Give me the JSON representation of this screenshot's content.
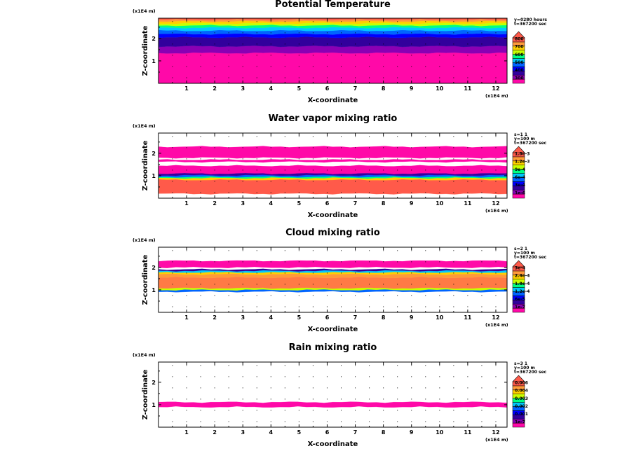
{
  "chart_data": [
    {
      "type": "heatmap",
      "title": "Potential Temperature",
      "xlabel": "X-coordinate",
      "ylabel": "Z-coordinate",
      "x_scale_note": "(x1E4 m)",
      "z_scale_note": "(x1E4 m)",
      "xlim": [
        0,
        12.4
      ],
      "ylim": [
        0,
        2.9
      ],
      "x_ticks": [
        "1",
        "2",
        "3",
        "4",
        "5",
        "6",
        "7",
        "8",
        "9",
        "10",
        "11",
        "12"
      ],
      "y_ticks": [
        "1",
        "2"
      ],
      "info_lines": [
        "y=0280 hours",
        "t=367200 sec"
      ],
      "colorbar_labels": [
        "800",
        "700",
        "600",
        "500",
        "400",
        "300"
      ],
      "bands": [
        {
          "z0": 0.0,
          "z1": 1.35,
          "color": "#ff09a8"
        },
        {
          "z0": 1.35,
          "z1": 1.65,
          "color": "#8a00b4"
        },
        {
          "z0": 1.65,
          "z1": 2.05,
          "color": "#32009c"
        },
        {
          "z0": 2.05,
          "z1": 2.2,
          "color": "#0000ff"
        },
        {
          "z0": 2.2,
          "z1": 2.35,
          "color": "#0064ff"
        },
        {
          "z0": 2.35,
          "z1": 2.48,
          "color": "#00c8ff"
        },
        {
          "z0": 2.48,
          "z1": 2.58,
          "color": "#00ff80"
        },
        {
          "z0": 2.58,
          "z1": 2.67,
          "color": "#c8ff00"
        },
        {
          "z0": 2.67,
          "z1": 2.76,
          "color": "#ffd000"
        },
        {
          "z0": 2.76,
          "z1": 2.83,
          "color": "#ff9a3a"
        },
        {
          "z0": 2.83,
          "z1": 2.9,
          "color": "#ff5a4a"
        }
      ]
    },
    {
      "type": "heatmap",
      "title": "Water vapor mixing ratio",
      "xlabel": "X-coordinate",
      "ylabel": "Z-coordinate",
      "x_scale_note": "(x1E4 m)",
      "z_scale_note": "(x1E4 m)",
      "xlim": [
        0,
        12.4
      ],
      "ylim": [
        0,
        2.9
      ],
      "x_ticks": [
        "1",
        "2",
        "3",
        "4",
        "5",
        "6",
        "7",
        "8",
        "9",
        "10",
        "11",
        "12"
      ],
      "y_ticks": [
        "1",
        "2"
      ],
      "info_lines": [
        "s=1 1",
        "y=100 m",
        "t=367200 sec"
      ],
      "colorbar_labels": [
        "1.8e-3",
        "1.2e-3",
        "9e-4",
        "6e-4",
        "3e-4",
        "1e-6"
      ],
      "bands": [
        {
          "z0": 0.0,
          "z1": 0.2,
          "color": "#ffffff"
        },
        {
          "z0": 0.2,
          "z1": 0.82,
          "color": "#ff5a4a"
        },
        {
          "z0": 0.82,
          "z1": 0.9,
          "color": "#ffd000"
        },
        {
          "z0": 0.9,
          "z1": 0.95,
          "color": "#00ff80"
        },
        {
          "z0": 0.95,
          "z1": 1.02,
          "color": "#0064ff"
        },
        {
          "z0": 1.02,
          "z1": 1.1,
          "color": "#32009c"
        },
        {
          "z0": 1.1,
          "z1": 1.45,
          "color": "#ff09a8"
        },
        {
          "z0": 1.45,
          "z1": 1.62,
          "color": "#ffffff"
        },
        {
          "z0": 1.62,
          "z1": 1.72,
          "color": "#ff09a8"
        },
        {
          "z0": 1.72,
          "z1": 1.8,
          "color": "#ffffff"
        },
        {
          "z0": 1.8,
          "z1": 2.3,
          "color": "#ff09a8"
        },
        {
          "z0": 2.3,
          "z1": 2.9,
          "color": "#ffffff"
        }
      ]
    },
    {
      "type": "heatmap",
      "title": "Cloud mixing ratio",
      "xlabel": "X-coordinate",
      "ylabel": "Z-coordinate",
      "x_scale_note": "(x1E4 m)",
      "z_scale_note": "(x1E4 m)",
      "xlim": [
        0,
        12.4
      ],
      "ylim": [
        0,
        2.9
      ],
      "x_ticks": [
        "1",
        "2",
        "3",
        "4",
        "5",
        "6",
        "7",
        "8",
        "9",
        "10",
        "11",
        "12"
      ],
      "y_ticks": [
        "1",
        "2"
      ],
      "info_lines": [
        "s=2 1",
        "y=100 m",
        "t=367200 sec"
      ],
      "colorbar_labels": [
        "3e-4",
        "2.4e-4",
        "1.8e-4",
        "1.2e-4",
        "6e-5",
        "1e-7"
      ],
      "bands": [
        {
          "z0": 0.0,
          "z1": 0.92,
          "color": "#ffffff"
        },
        {
          "z0": 0.92,
          "z1": 1.0,
          "color": "#0064ff"
        },
        {
          "z0": 1.0,
          "z1": 1.08,
          "color": "#c8ff00"
        },
        {
          "z0": 1.08,
          "z1": 1.55,
          "color": "#ff7a45"
        },
        {
          "z0": 1.55,
          "z1": 1.7,
          "color": "#ff9a3a"
        },
        {
          "z0": 1.7,
          "z1": 1.78,
          "color": "#ffd000"
        },
        {
          "z0": 1.78,
          "z1": 1.85,
          "color": "#00c8ff"
        },
        {
          "z0": 1.85,
          "z1": 1.92,
          "color": "#32009c"
        },
        {
          "z0": 1.92,
          "z1": 2.0,
          "color": "#ffffff"
        },
        {
          "z0": 2.0,
          "z1": 2.3,
          "color": "#ff09a8"
        },
        {
          "z0": 2.3,
          "z1": 2.9,
          "color": "#ffffff"
        }
      ]
    },
    {
      "type": "heatmap",
      "title": "Rain mixing ratio",
      "xlabel": "X-coordinate",
      "ylabel": "Z-coordinate",
      "x_scale_note": "(x1E4 m)",
      "z_scale_note": "(x1E4 m)",
      "xlim": [
        0,
        12.4
      ],
      "ylim": [
        0,
        2.9
      ],
      "x_ticks": [
        "1",
        "2",
        "3",
        "4",
        "5",
        "6",
        "7",
        "8",
        "9",
        "10",
        "11",
        "12"
      ],
      "y_ticks": [
        "1",
        "2"
      ],
      "info_lines": [
        "s=3 1",
        "y=100 m",
        "t=367200 sec"
      ],
      "colorbar_labels": [
        "0.006",
        "0.004",
        "0.003",
        "0.002",
        "0.001",
        "1e-7"
      ],
      "bands": [
        {
          "z0": 0.0,
          "z1": 0.9,
          "color": "#ffffff"
        },
        {
          "z0": 0.9,
          "z1": 1.12,
          "color": "#ff09a8"
        },
        {
          "z0": 1.12,
          "z1": 2.9,
          "color": "#ffffff"
        }
      ]
    }
  ],
  "colorbar_colors": [
    "#ff09a8",
    "#8a00b4",
    "#32009c",
    "#0000ff",
    "#0064ff",
    "#00c8ff",
    "#00ff80",
    "#c8ff00",
    "#ffd000",
    "#ff9a3a",
    "#ff5a4a"
  ]
}
